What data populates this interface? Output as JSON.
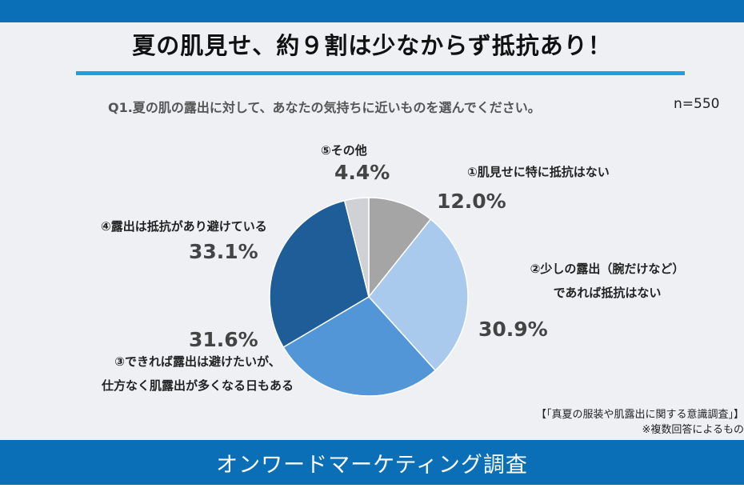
{
  "header": {
    "title": "夏の肌見せ、約９割は少なからず抵抗あり！",
    "question": "Q1.夏の肌の露出に対して、あなたの気持ちに近いものを選んでください。",
    "sample_size": "n=550"
  },
  "chart_data": {
    "type": "pie",
    "title": "夏の肌見せ、約９割は少なからず抵抗あり！",
    "start_angle_deg": 0,
    "direction": "clockwise",
    "categories": [
      "①肌見せに特に抵抗はない",
      "②少しの露出（腕だけなど）であれば抵抗はない",
      "③できれば露出は避けたいが、仕方なく肌露出が多くなる日もある",
      "④露出は抵抗があり避けている",
      "⑤その他"
    ],
    "values": [
      12.0,
      30.9,
      31.6,
      33.1,
      4.4
    ],
    "value_labels": [
      "12.0%",
      "30.9%",
      "31.6%",
      "33.1%",
      "4.4%"
    ],
    "label_lines": [
      [
        "①肌見せに特に抵抗はない"
      ],
      [
        "②少しの露出（腕だけなど）",
        "であれば抵抗はない"
      ],
      [
        "③できれば露出は避けたいが、",
        "仕方なく肌露出が多くなる日もある"
      ],
      [
        "④露出は抵抗があり避けている"
      ],
      [
        "⑤その他"
      ]
    ],
    "colors": [
      "#a5a5a5",
      "#a9caec",
      "#5296d8",
      "#1f5d99",
      "#cfd1d5"
    ]
  },
  "source": {
    "line1": "【「真夏の服装や肌露出に関する意識調査」】",
    "line2": "※複数回答によるもの"
  },
  "footer": {
    "text": "オンワードマーケティング調査"
  }
}
